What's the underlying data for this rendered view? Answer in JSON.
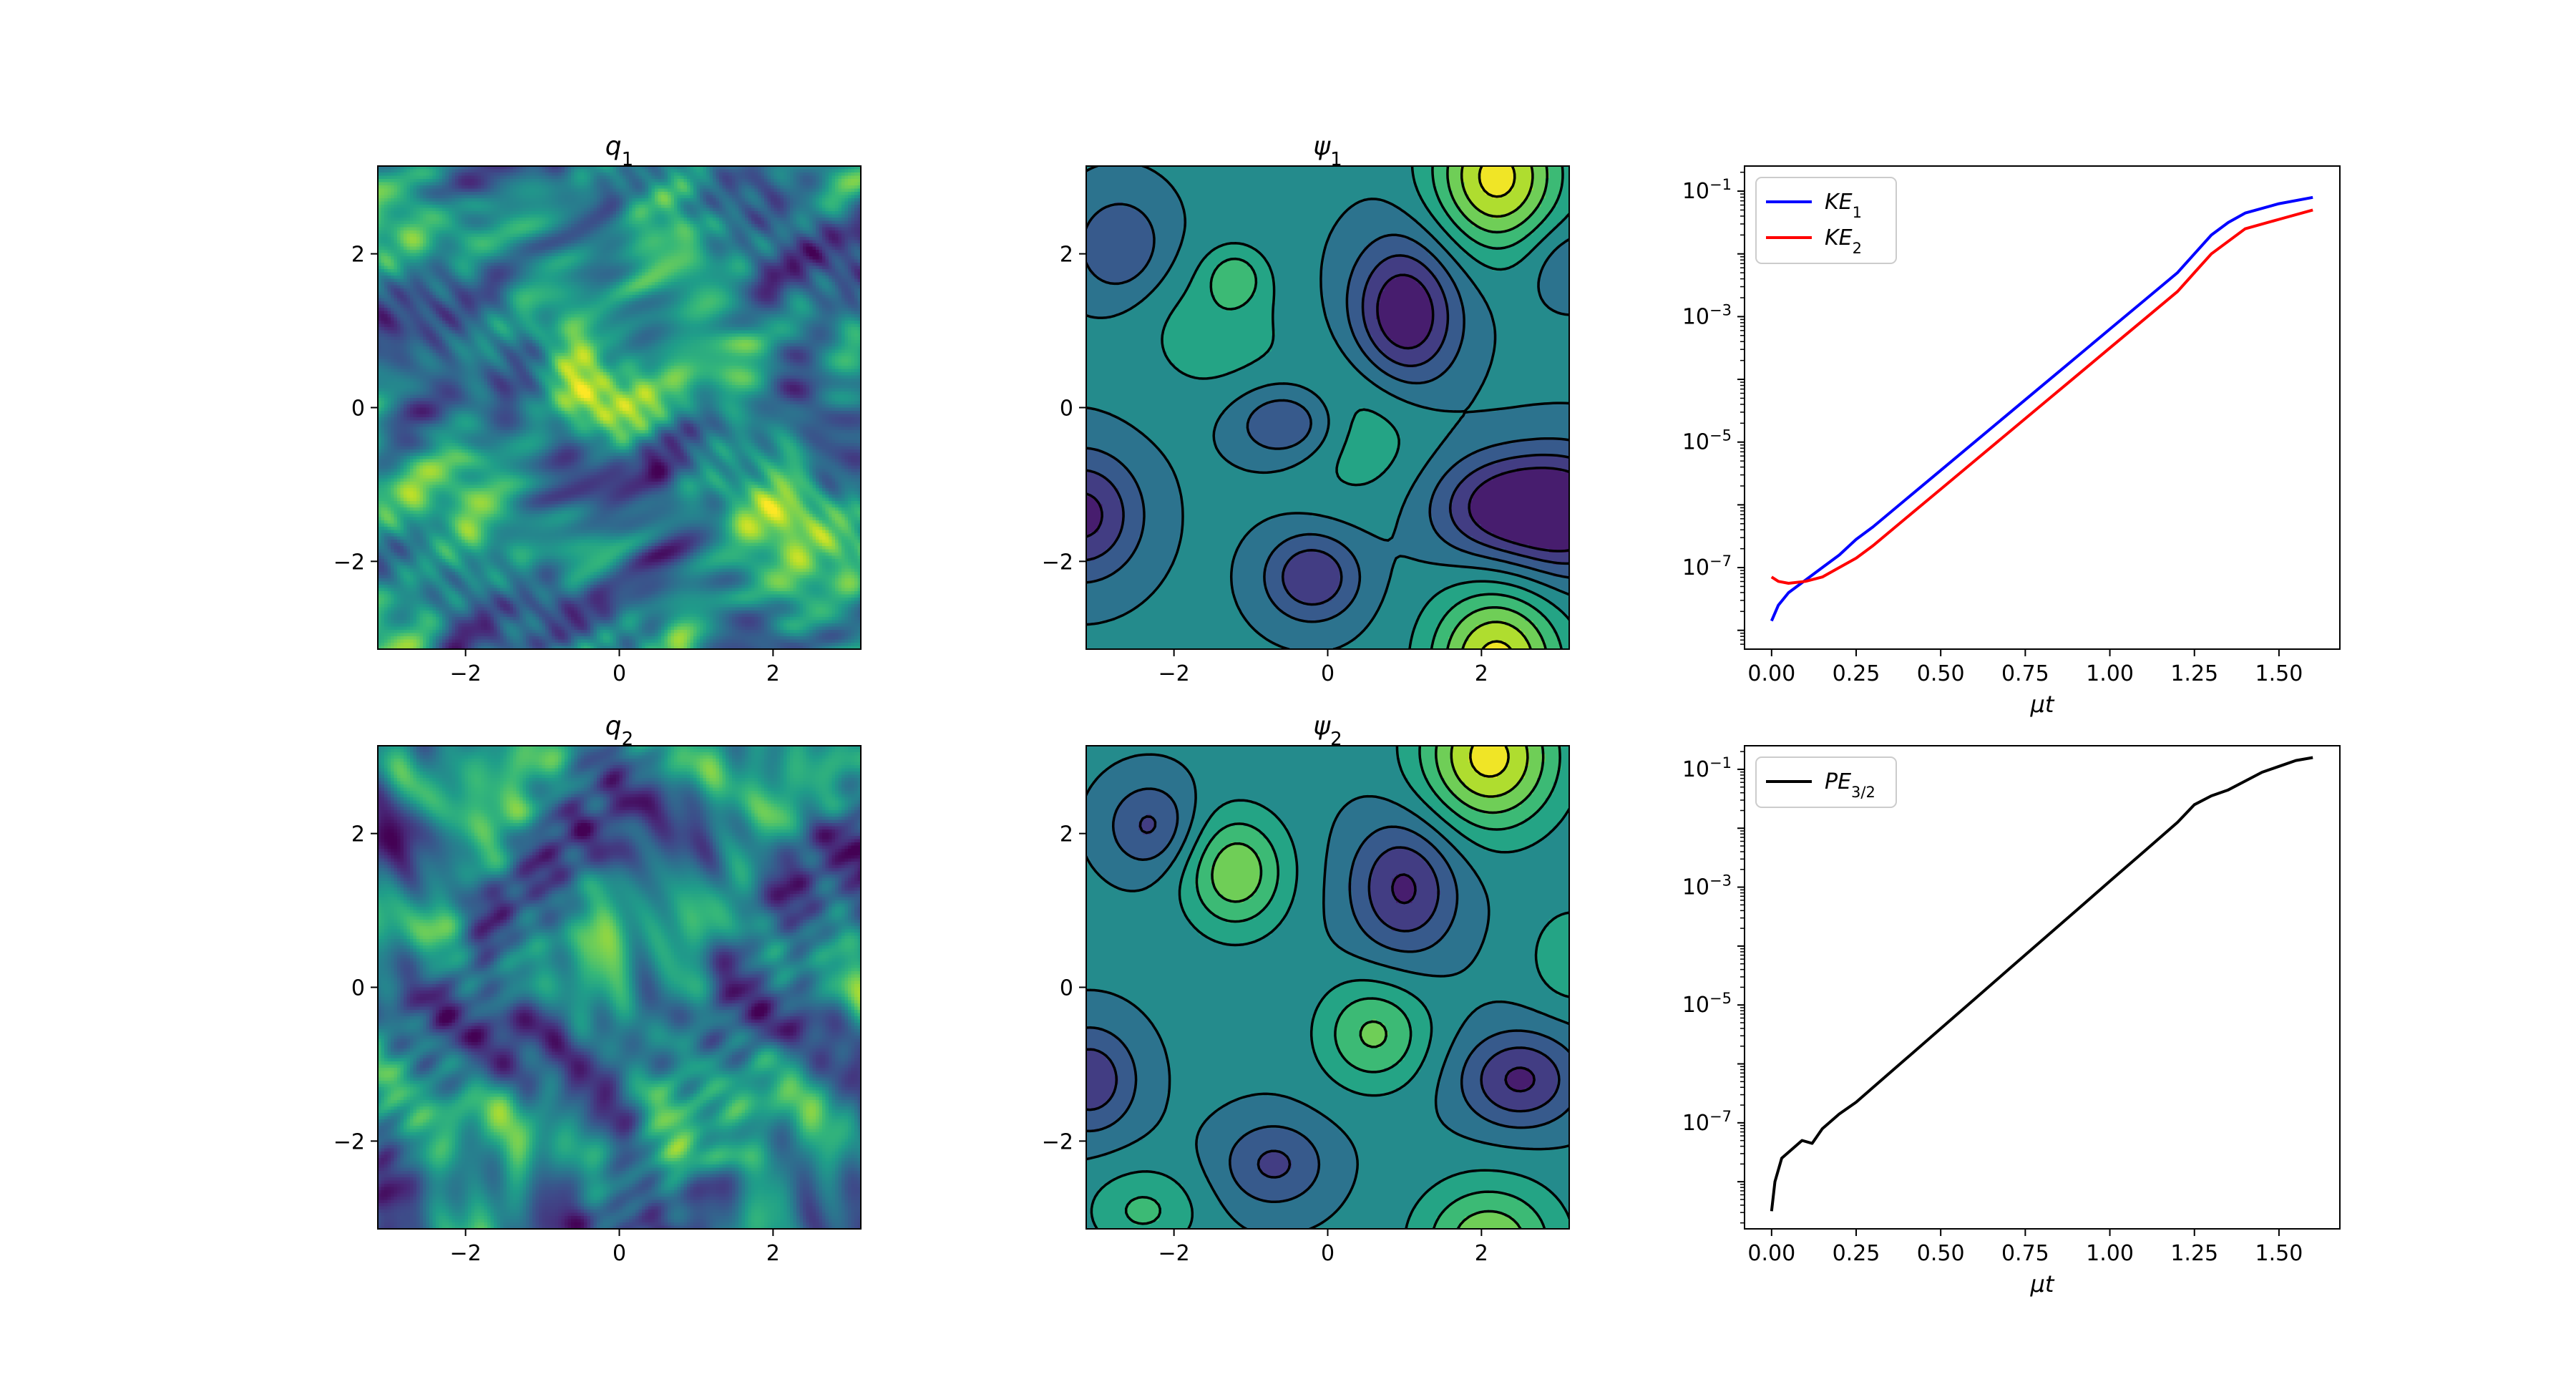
{
  "figure": {
    "colormap": "viridis",
    "field_ticks": [
      "−2",
      "0",
      "2"
    ],
    "field_ticks_y": [
      "2",
      "0",
      "−2"
    ],
    "panels": [
      {
        "id": "q1",
        "title_main": "q",
        "title_sub": "1"
      },
      {
        "id": "psi1",
        "title_main": "ψ",
        "title_sub": "1"
      },
      {
        "id": "q2",
        "title_main": "q",
        "title_sub": "2"
      },
      {
        "id": "psi2",
        "title_main": "ψ",
        "title_sub": "2"
      }
    ]
  },
  "chart_data": [
    {
      "type": "heatmap",
      "title": "q1",
      "field": "q1",
      "xlim": [
        -3.14159,
        3.14159
      ],
      "ylim": [
        -3.14159,
        3.14159
      ],
      "xticks": [
        -2,
        0,
        2
      ],
      "yticks": [
        -2,
        0,
        2
      ],
      "colormap": "viridis"
    },
    {
      "type": "heatmap",
      "title": "ψ1",
      "field": "psi1",
      "style": "filled contours with black contour lines, negative levels dashed",
      "xlim": [
        -3.14159,
        3.14159
      ],
      "ylim": [
        -3.14159,
        3.14159
      ],
      "xticks": [
        -2,
        0,
        2
      ],
      "yticks": [
        -2,
        0,
        2
      ],
      "colormap": "viridis"
    },
    {
      "type": "line",
      "xlabel": "μt",
      "xlabel_main": "μ",
      "xlabel_sub": "t",
      "yscale": "log",
      "xlim": [
        -0.08,
        1.68
      ],
      "ylim_log10": [
        -8.3,
        -0.6
      ],
      "xticks": [
        "0.00",
        "0.25",
        "0.50",
        "0.75",
        "1.00",
        "1.25",
        "1.50"
      ],
      "yticks": [
        {
          "base": "10",
          "exp": "−1"
        },
        {
          "base": "10",
          "exp": "−3"
        },
        {
          "base": "10",
          "exp": "−5"
        },
        {
          "base": "10",
          "exp": "−7"
        }
      ],
      "ytick_values_log10": [
        -1,
        -3,
        -5,
        -7
      ],
      "legend_position": "upper-left",
      "series": [
        {
          "name": "KE1",
          "name_main": "KE",
          "name_sub": "1",
          "color": "#0000ff",
          "x": [
            0.0,
            0.02,
            0.05,
            0.1,
            0.15,
            0.2,
            0.25,
            0.3,
            0.4,
            0.5,
            0.6,
            0.7,
            0.8,
            0.9,
            1.0,
            1.1,
            1.2,
            1.25,
            1.3,
            1.35,
            1.4,
            1.5,
            1.6
          ],
          "log10_y": [
            -7.85,
            -7.6,
            -7.4,
            -7.2,
            -7.0,
            -6.8,
            -6.55,
            -6.35,
            -5.9,
            -5.45,
            -5.0,
            -4.55,
            -4.1,
            -3.65,
            -3.2,
            -2.75,
            -2.3,
            -2.0,
            -1.7,
            -1.5,
            -1.35,
            -1.2,
            -1.1
          ]
        },
        {
          "name": "KE2",
          "name_main": "KE",
          "name_sub": "2",
          "color": "#ff0000",
          "x": [
            0.0,
            0.02,
            0.05,
            0.1,
            0.15,
            0.2,
            0.25,
            0.3,
            0.4,
            0.5,
            0.6,
            0.7,
            0.8,
            0.9,
            1.0,
            1.1,
            1.2,
            1.25,
            1.3,
            1.35,
            1.4,
            1.5,
            1.6
          ],
          "log10_y": [
            -7.15,
            -7.22,
            -7.25,
            -7.22,
            -7.15,
            -7.0,
            -6.85,
            -6.65,
            -6.2,
            -5.75,
            -5.3,
            -4.85,
            -4.4,
            -3.95,
            -3.5,
            -3.05,
            -2.6,
            -2.3,
            -2.0,
            -1.8,
            -1.6,
            -1.45,
            -1.3
          ]
        }
      ]
    },
    {
      "type": "heatmap",
      "title": "q2",
      "field": "q2",
      "xlim": [
        -3.14159,
        3.14159
      ],
      "ylim": [
        -3.14159,
        3.14159
      ],
      "xticks": [
        -2,
        0,
        2
      ],
      "yticks": [
        -2,
        0,
        2
      ],
      "colormap": "viridis"
    },
    {
      "type": "heatmap",
      "title": "ψ2",
      "field": "psi2",
      "style": "filled contours with black contour lines, negative levels dashed",
      "xlim": [
        -3.14159,
        3.14159
      ],
      "ylim": [
        -3.14159,
        3.14159
      ],
      "xticks": [
        -2,
        0,
        2
      ],
      "yticks": [
        -2,
        0,
        2
      ],
      "colormap": "viridis"
    },
    {
      "type": "line",
      "xlabel": "μt",
      "xlabel_main": "μ",
      "xlabel_sub": "t",
      "yscale": "log",
      "xlim": [
        -0.08,
        1.68
      ],
      "ylim_log10": [
        -8.8,
        -0.6
      ],
      "xticks": [
        "0.00",
        "0.25",
        "0.50",
        "0.75",
        "1.00",
        "1.25",
        "1.50"
      ],
      "yticks": [
        {
          "base": "10",
          "exp": "−1"
        },
        {
          "base": "10",
          "exp": "−3"
        },
        {
          "base": "10",
          "exp": "−5"
        },
        {
          "base": "10",
          "exp": "−7"
        }
      ],
      "ytick_values_log10": [
        -1,
        -3,
        -5,
        -7
      ],
      "legend_position": "upper-left",
      "series": [
        {
          "name": "PE3/2",
          "name_main": "PE",
          "name_sub": "3/2",
          "color": "#000000",
          "x": [
            0.0,
            0.01,
            0.03,
            0.06,
            0.09,
            0.12,
            0.15,
            0.2,
            0.25,
            0.3,
            0.4,
            0.5,
            0.6,
            0.7,
            0.8,
            0.9,
            1.0,
            1.1,
            1.2,
            1.25,
            1.3,
            1.35,
            1.4,
            1.45,
            1.5,
            1.55,
            1.6
          ],
          "log10_y": [
            -8.5,
            -8.0,
            -7.6,
            -7.45,
            -7.3,
            -7.35,
            -7.1,
            -6.85,
            -6.65,
            -6.4,
            -5.9,
            -5.4,
            -4.9,
            -4.4,
            -3.9,
            -3.4,
            -2.9,
            -2.4,
            -1.9,
            -1.6,
            -1.45,
            -1.35,
            -1.2,
            -1.05,
            -0.95,
            -0.85,
            -0.8
          ]
        }
      ]
    }
  ]
}
